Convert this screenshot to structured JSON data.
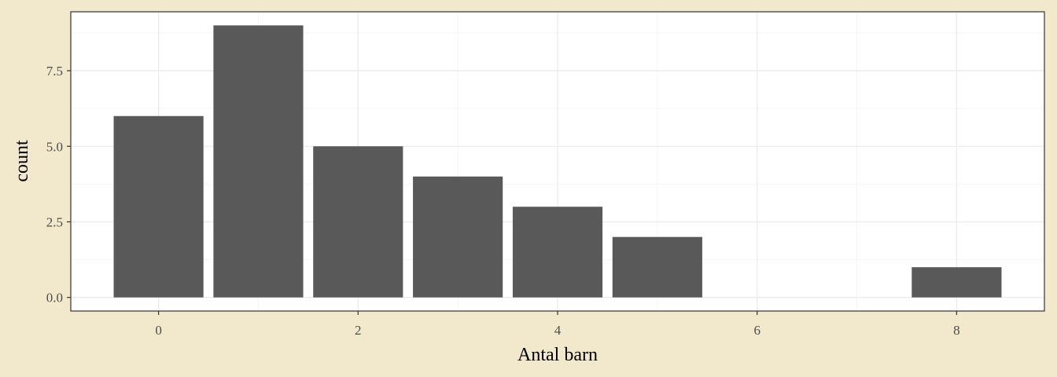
{
  "colors": {
    "background": "#f2e8cb",
    "panel": "#ffffff",
    "bar": "#595959",
    "grid_major": "#ebebeb",
    "grid_minor": "#f5f5f5",
    "axis": "#333333"
  },
  "chart_data": {
    "type": "bar",
    "x": [
      0,
      1,
      2,
      3,
      4,
      5,
      8
    ],
    "values": [
      6,
      9,
      5,
      4,
      3,
      2,
      1
    ],
    "xlabel": "Antal barn",
    "ylabel": "count",
    "xlim": [
      -0.88,
      8.88
    ],
    "ylim": [
      -0.45,
      9.45
    ],
    "x_ticks": [
      0,
      2,
      4,
      6,
      8
    ],
    "x_tick_labels": [
      "0",
      "2",
      "4",
      "6",
      "8"
    ],
    "y_ticks": [
      0,
      2.5,
      5,
      7.5
    ],
    "y_tick_labels": [
      "0.0",
      "2.5",
      "5.0",
      "7.5"
    ],
    "bar_width": 0.9,
    "grid": true,
    "legend": "none"
  }
}
